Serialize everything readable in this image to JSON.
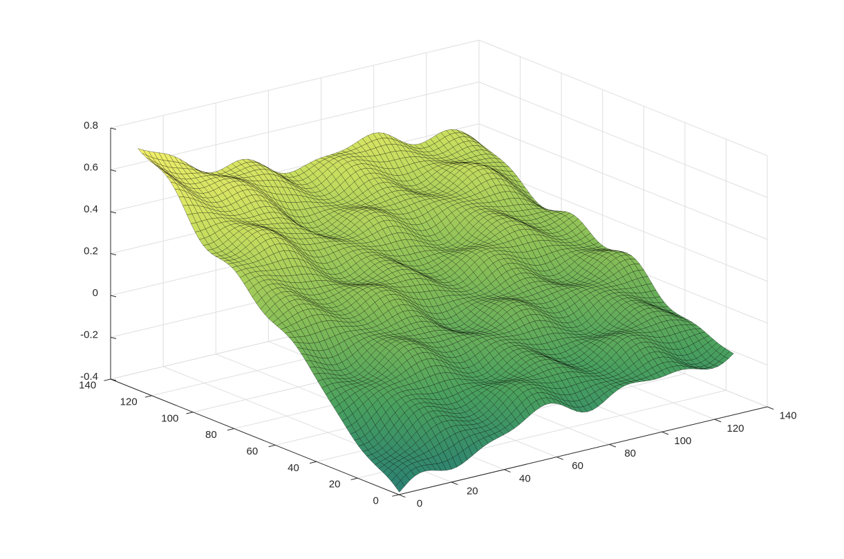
{
  "chart_data": {
    "type": "surface",
    "title": "",
    "xlabel": "",
    "ylabel": "",
    "zlabel": "",
    "xlim": [
      0,
      140
    ],
    "ylim": [
      0,
      140
    ],
    "zlim": [
      -0.4,
      0.8
    ],
    "x_ticks": [
      0,
      20,
      40,
      60,
      80,
      100,
      120,
      140
    ],
    "y_ticks": [
      0,
      20,
      40,
      60,
      80,
      100,
      120,
      140
    ],
    "z_ticks": [
      -0.4,
      -0.2,
      0,
      0.2,
      0.4,
      0.6,
      0.8
    ],
    "x_tick_labels": [
      "0",
      "20",
      "40",
      "60",
      "80",
      "100",
      "120",
      "140"
    ],
    "y_tick_labels": [
      "0",
      "20",
      "40",
      "60",
      "80",
      "100",
      "120",
      "140"
    ],
    "z_tick_labels": [
      "-0.4",
      "-0.2",
      "0",
      "0.2",
      "0.4",
      "0.6",
      "0.8"
    ],
    "grid": true,
    "colormap": "parula",
    "colormap_colors": [
      "#2a7f72",
      "#49a05e",
      "#86bd57",
      "#c6dd5e",
      "#f2f06a"
    ],
    "edge_color": "#000000",
    "surface": {
      "x_range": [
        1,
        128
      ],
      "y_range": [
        1,
        128
      ],
      "height_points": [
        {
          "x": 1,
          "y": 1,
          "z": -0.39
        },
        {
          "x": 1,
          "y": 128,
          "z": 0.69
        },
        {
          "x": 128,
          "y": 1,
          "z": -0.13
        },
        {
          "x": 128,
          "y": 128,
          "z": 0.37
        },
        {
          "x": 45,
          "y": 70,
          "z": 0.05
        },
        {
          "x": 70,
          "y": 45,
          "z": -0.1
        },
        {
          "x": 90,
          "y": 100,
          "z": 0.3
        }
      ]
    }
  }
}
